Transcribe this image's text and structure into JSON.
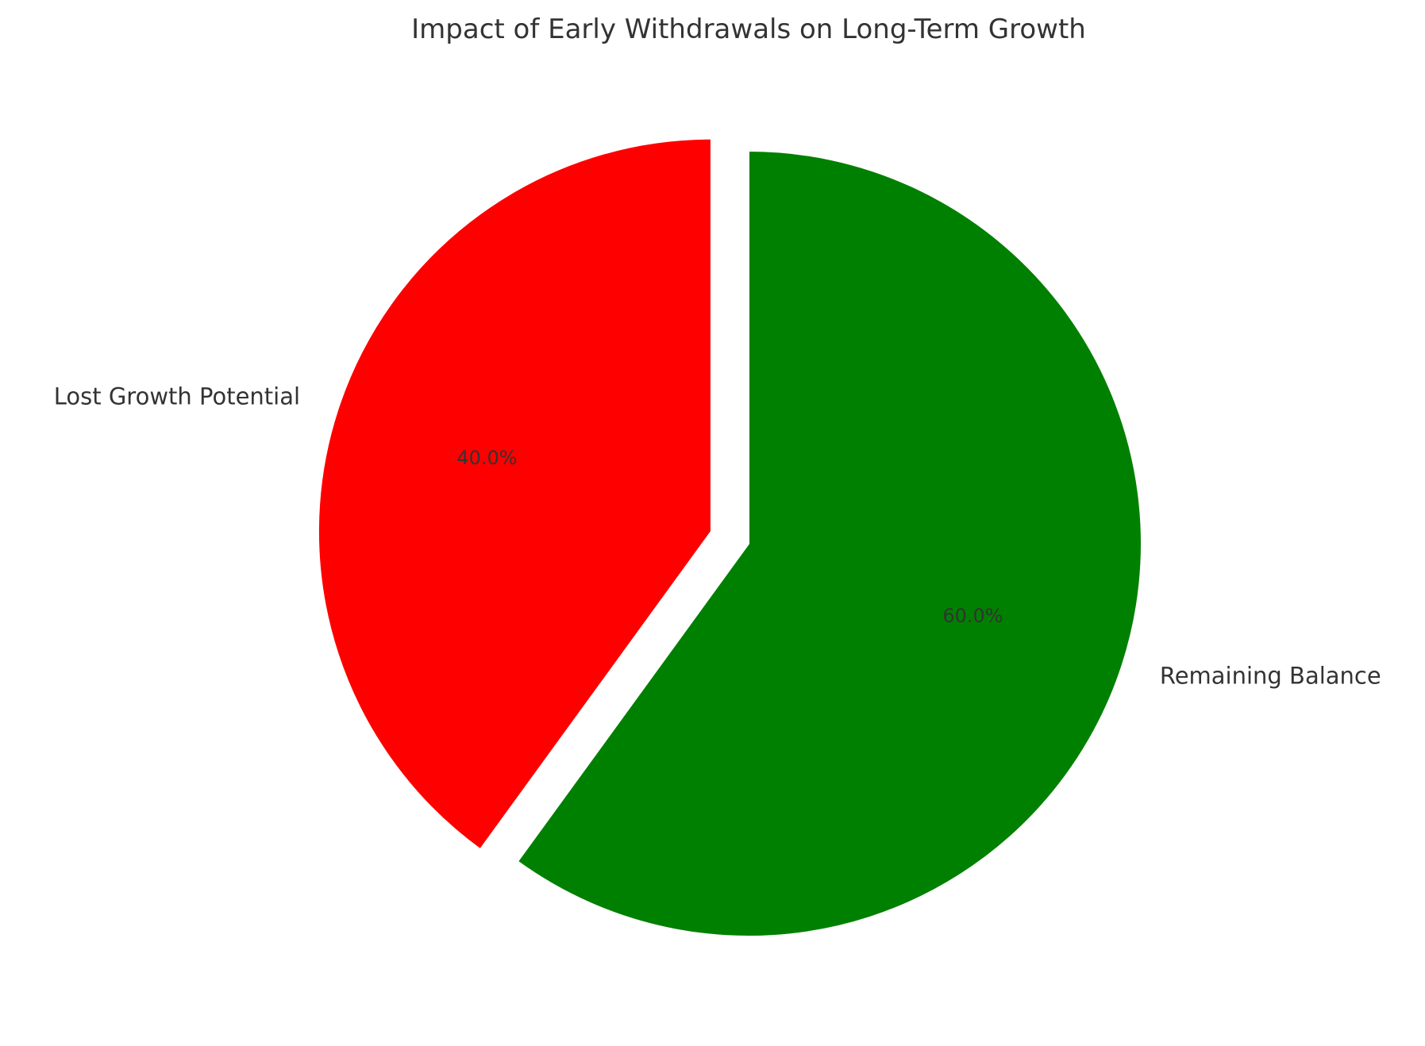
{
  "chart_data": {
    "type": "pie",
    "title": "Impact of Early Withdrawals on Long-Term Growth",
    "labels": [
      "Lost Growth Potential",
      "Remaining Balance"
    ],
    "values": [
      40,
      60
    ],
    "percent_labels": [
      "40.0%",
      "60.0%"
    ],
    "colors": [
      "#ff0000",
      "#008000"
    ],
    "exploded_slice": "Lost Growth Potential",
    "start_angle": "90",
    "direction": "counterclockwise",
    "legend": "none"
  }
}
